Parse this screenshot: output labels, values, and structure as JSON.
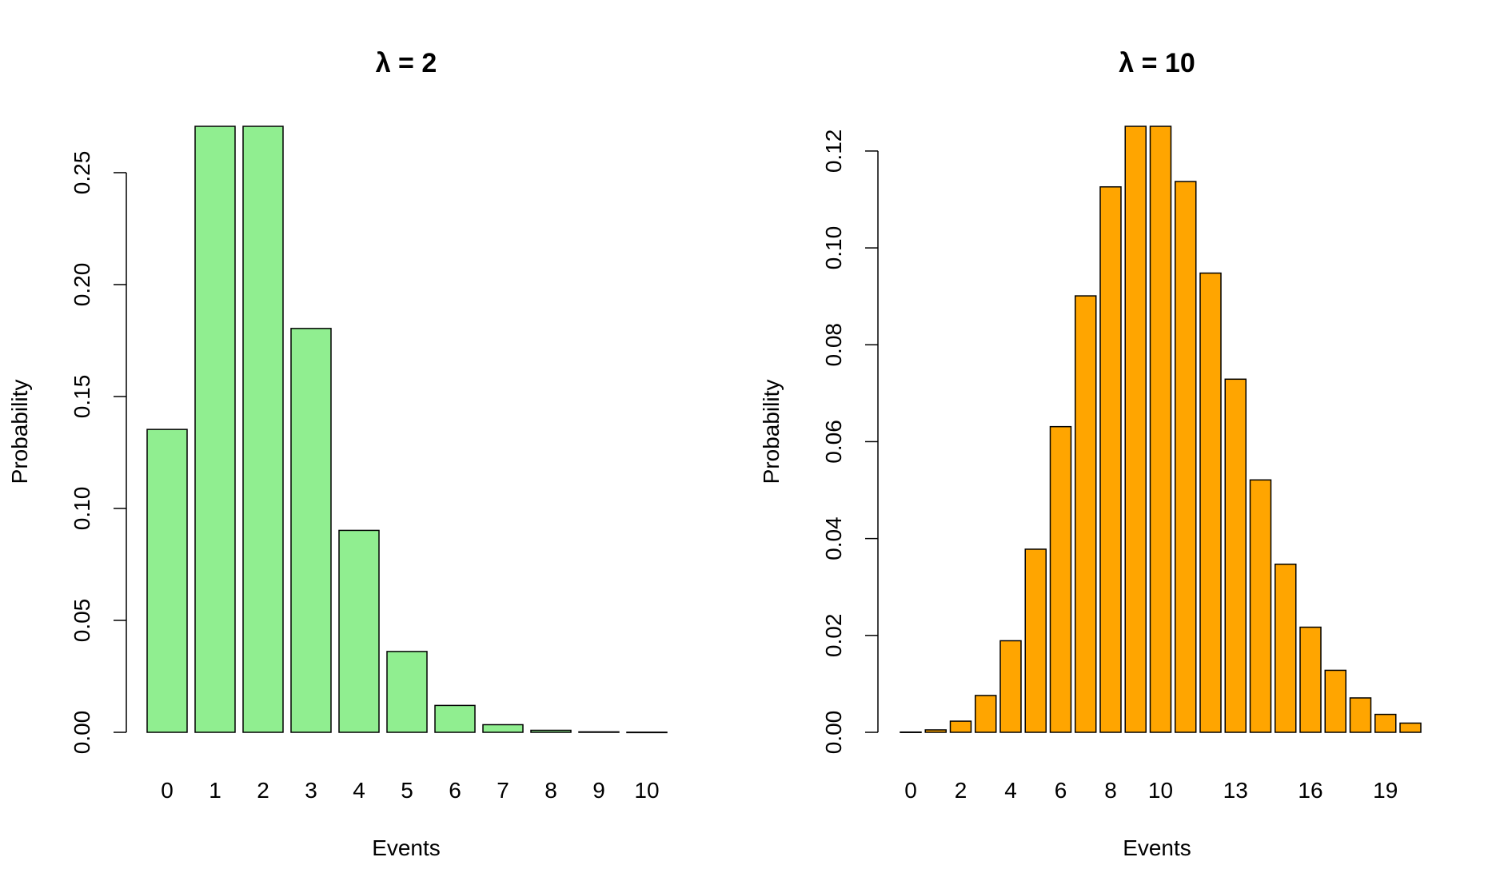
{
  "chart_data": [
    {
      "type": "bar",
      "title": "λ = 2",
      "xlabel": "Events",
      "ylabel": "Probability",
      "color": "#90EE90",
      "categories": [
        "0",
        "1",
        "2",
        "3",
        "4",
        "5",
        "6",
        "7",
        "8",
        "9",
        "10"
      ],
      "values": [
        0.1353,
        0.2707,
        0.2707,
        0.1804,
        0.0902,
        0.0361,
        0.012,
        0.0034,
        0.0009,
        0.0002,
        4e-05
      ],
      "visible_x_labels": [
        "0",
        "1",
        "2",
        "3",
        "4",
        "5",
        "6",
        "7",
        "8",
        "9",
        "10"
      ],
      "y_ticks": [
        0.0,
        0.05,
        0.1,
        0.15,
        0.2,
        0.25
      ],
      "y_tick_labels": [
        "0.00",
        "0.05",
        "0.10",
        "0.15",
        "0.20",
        "0.25"
      ],
      "ylim": [
        0,
        0.2707
      ]
    },
    {
      "type": "bar",
      "title": "λ = 10",
      "xlabel": "Events",
      "ylabel": "Probability",
      "color": "#FFA500",
      "categories": [
        "0",
        "1",
        "2",
        "3",
        "4",
        "5",
        "6",
        "7",
        "8",
        "9",
        "10",
        "11",
        "12",
        "13",
        "14",
        "15",
        "16",
        "17",
        "18",
        "19",
        "20"
      ],
      "values": [
        5e-05,
        0.0005,
        0.0023,
        0.0076,
        0.0189,
        0.0378,
        0.0631,
        0.0901,
        0.1126,
        0.1251,
        0.1251,
        0.1137,
        0.0948,
        0.0729,
        0.0521,
        0.0347,
        0.0217,
        0.0128,
        0.0071,
        0.0037,
        0.0019
      ],
      "visible_x_labels": [
        "0",
        "2",
        "4",
        "6",
        "8",
        "10",
        "13",
        "16",
        "19"
      ],
      "y_ticks": [
        0.0,
        0.02,
        0.04,
        0.06,
        0.08,
        0.1,
        0.12
      ],
      "y_tick_labels": [
        "0.00",
        "0.02",
        "0.04",
        "0.06",
        "0.08",
        "0.10",
        "0.12"
      ],
      "ylim": [
        0,
        0.1251
      ]
    }
  ]
}
